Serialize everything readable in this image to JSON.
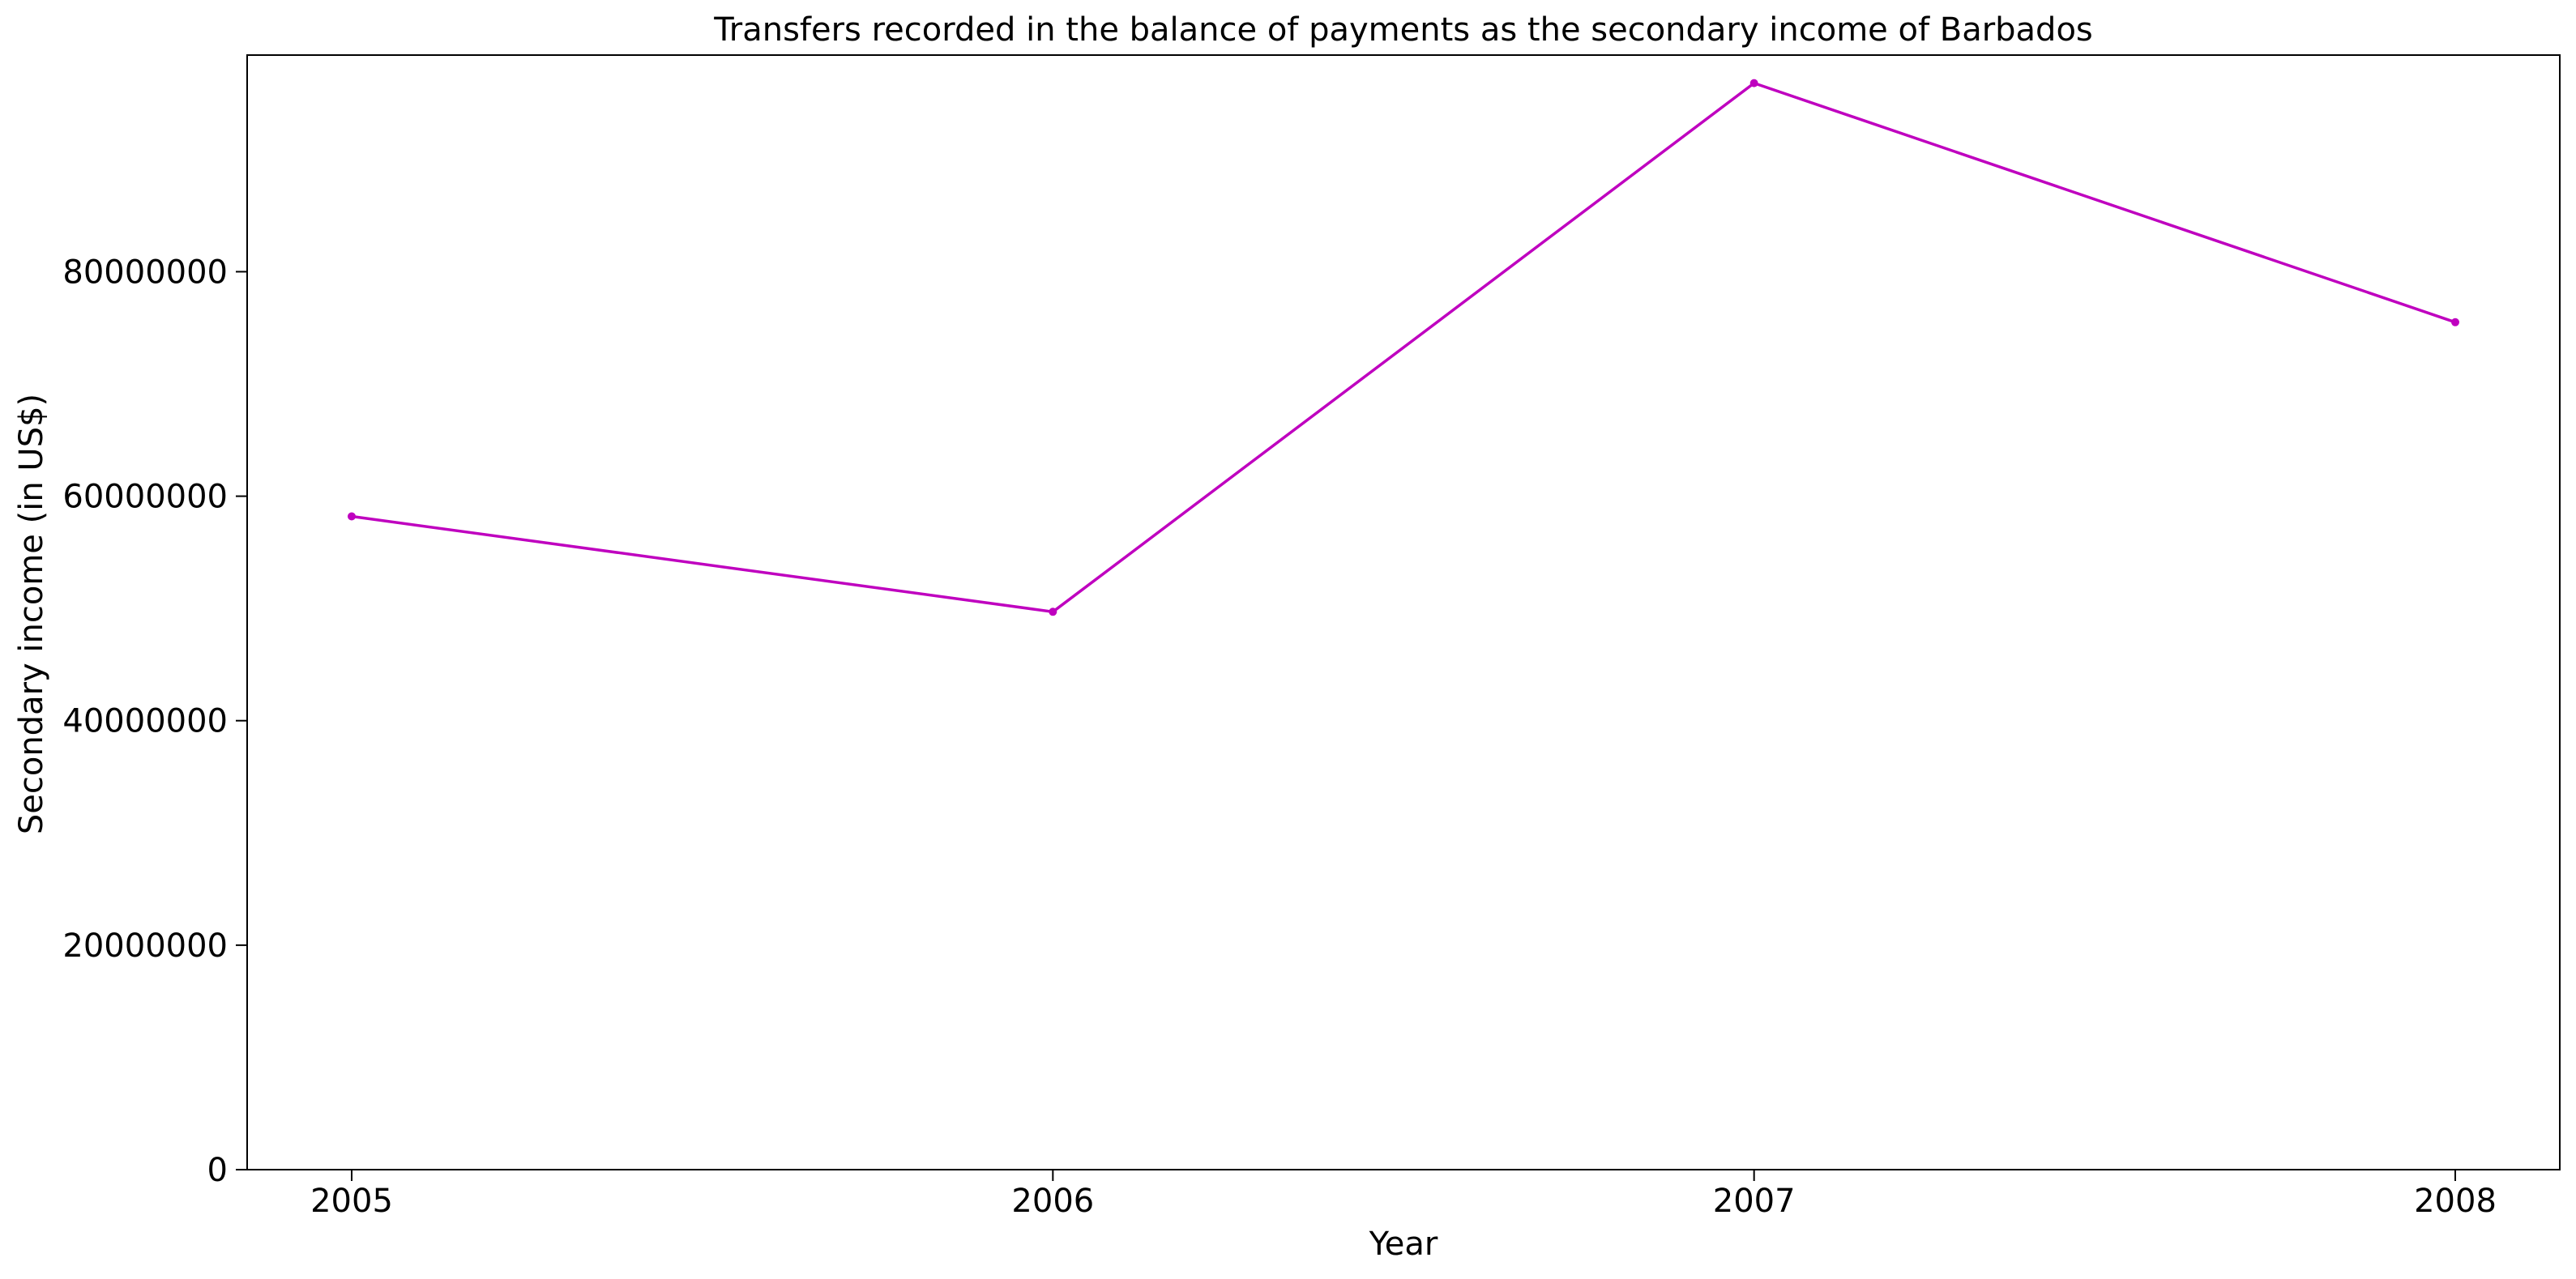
{
  "chart_data": {
    "type": "line",
    "title": "Transfers recorded in the balance of payments as the secondary income of Barbados",
    "xlabel": "Year",
    "ylabel": "Secondary income (in US$)",
    "x": [
      "2005",
      "2006",
      "2007",
      "2008"
    ],
    "series": [
      {
        "name": "Secondary income",
        "values": [
          58200000,
          49700000,
          96800000,
          75500000
        ],
        "color": "#bf00bf"
      }
    ],
    "ylim": [
      0,
      99300000
    ],
    "yticks": [
      0,
      20000000,
      40000000,
      60000000,
      80000000
    ],
    "ytick_labels": [
      "0",
      "20000000",
      "40000000",
      "60000000",
      "80000000"
    ],
    "grid": false,
    "legend": "none"
  }
}
